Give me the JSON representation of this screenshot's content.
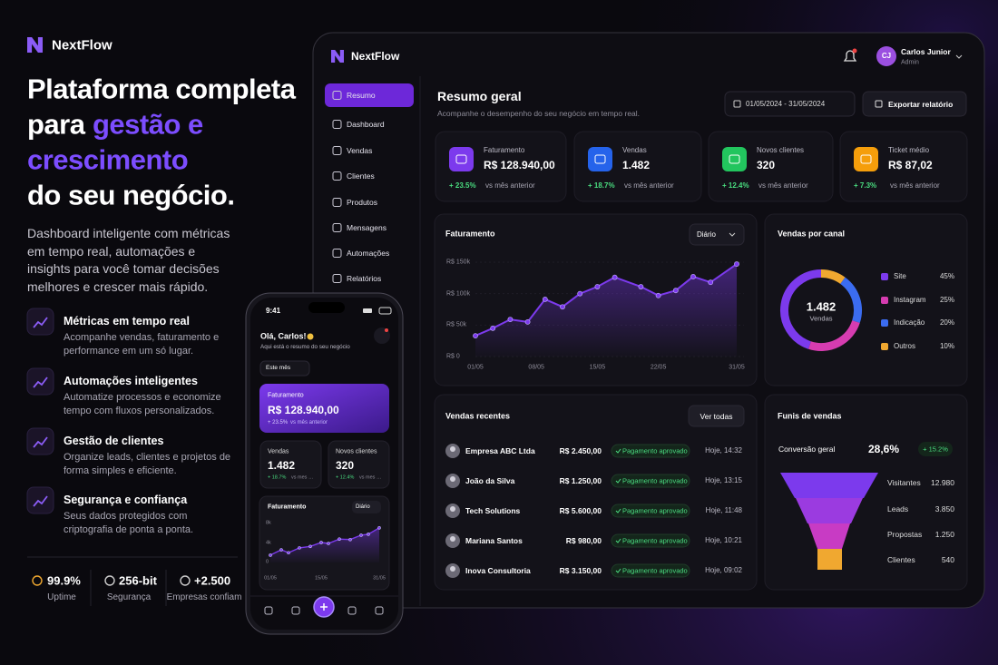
{
  "brand": "NextFlow",
  "hero": {
    "title": [
      "Plataforma completa",
      "para",
      "gestão e",
      "crescimento",
      "do seu negócio."
    ],
    "description": "Dashboard inteligente com métricas em tempo real, automações e insights para você tomar decisões melhores e crescer mais rápido.",
    "features": [
      {
        "title": "Métricas em tempo real",
        "description": "Acompanhe vendas, faturamento e performance em um só lugar."
      },
      {
        "title": "Automações inteligentes",
        "description": "Automatize processos e economize tempo com fluxos personalizados."
      },
      {
        "title": "Gestão de clientes",
        "description": "Organize leads, clientes e projetos de forma simples e eficiente."
      },
      {
        "title": "Segurança e confiança",
        "description": "Seus dados protegidos com criptografia de ponta a ponta."
      }
    ],
    "stats": [
      {
        "value": "99.9%",
        "label": "Uptime"
      },
      {
        "value": "256-bit",
        "label": "Segurança"
      },
      {
        "value": "+2.500",
        "label": "Empresas confiam"
      }
    ]
  },
  "dashboard": {
    "brand": "NextFlow",
    "user": {
      "initials": "CJ",
      "name": "Carlos Junior",
      "role": "Admin"
    },
    "nav": [
      "Resumo",
      "Dashboard",
      "Vendas",
      "Clientes",
      "Produtos",
      "Mensagens",
      "Automações",
      "Relatórios"
    ],
    "active_nav": 0,
    "title": "Resumo geral",
    "subtitle": "Acompanhe o desempenho do seu negócio em tempo real.",
    "date_range": "01/05/2024 - 31/05/2024",
    "export": "Exportar relatório",
    "kpis": [
      {
        "label": "Faturamento",
        "value": "R$ 128.940,00",
        "change": "+ 23.5%",
        "compare": "vs mês anterior",
        "color": "#7c3aed"
      },
      {
        "label": "Vendas",
        "value": "1.482",
        "change": "+ 18.7%",
        "compare": "vs mês anterior",
        "color": "#2563eb"
      },
      {
        "label": "Novos clientes",
        "value": "320",
        "change": "+ 12.4%",
        "compare": "vs mês anterior",
        "color": "#22c55e"
      },
      {
        "label": "Ticket médio",
        "value": "R$ 87,02",
        "change": "+ 7.3%",
        "compare": "vs mês anterior",
        "color": "#f59e0b"
      }
    ],
    "revenue_chart": {
      "type": "line",
      "title": "Faturamento",
      "period": "Diário",
      "color": "#7c3aed",
      "x": [
        1,
        3,
        5,
        7,
        9,
        11,
        13,
        15,
        17,
        20,
        22,
        24,
        26,
        28,
        31
      ],
      "values": [
        33000,
        45000,
        59000,
        55000,
        91000,
        79000,
        100000,
        111000,
        126000,
        111000,
        97000,
        105000,
        127000,
        118000,
        147000
      ],
      "xlim": [
        1,
        31
      ],
      "xticks": [
        {
          "value": 1,
          "label": "01/05"
        },
        {
          "value": 8,
          "label": "08/05"
        },
        {
          "value": 15,
          "label": "15/05"
        },
        {
          "value": 22,
          "label": "22/05"
        },
        {
          "value": 31,
          "label": "31/05"
        }
      ],
      "ylim": [
        0,
        150000
      ],
      "yticks": [
        {
          "value": 0,
          "label": "R$ 0"
        },
        {
          "value": 50000,
          "label": "R$ 50k"
        },
        {
          "value": 100000,
          "label": "R$ 100k"
        },
        {
          "value": 150000,
          "label": "R$ 150k"
        }
      ],
      "grid": true
    },
    "channels": {
      "type": "donut",
      "title": "Vendas por canal",
      "total": "1.482",
      "total_label": "Vendas",
      "categories": [
        "Site",
        "Instagram",
        "Indicação",
        "Outros"
      ],
      "values": [
        45,
        25,
        20,
        10
      ],
      "value_labels": [
        "45%",
        "25%",
        "20%",
        "10%"
      ],
      "colors": [
        "#7c3aed",
        "#d63cb0",
        "#3b6cf0",
        "#f0a830"
      ]
    },
    "recent_sales": {
      "title": "Vendas recentes",
      "action": "Ver todas",
      "rows": [
        {
          "name": "Empresa ABC Ltda",
          "amount": "R$ 2.450,00",
          "status": "Pagamento aprovado",
          "date": "Hoje, 14:32"
        },
        {
          "name": "João da Silva",
          "amount": "R$ 1.250,00",
          "status": "Pagamento aprovado",
          "date": "Hoje, 13:15"
        },
        {
          "name": "Tech Solutions",
          "amount": "R$ 5.600,00",
          "status": "Pagamento aprovado",
          "date": "Hoje, 11:48"
        },
        {
          "name": "Mariana Santos",
          "amount": "R$ 980,00",
          "status": "Pagamento aprovado",
          "date": "Hoje, 10:21"
        },
        {
          "name": "Inova Consultoria",
          "amount": "R$ 3.150,00",
          "status": "Pagamento aprovado",
          "date": "Hoje, 09:02"
        }
      ]
    },
    "funnel": {
      "title": "Funis de vendas",
      "conversion_label": "Conversão geral",
      "conversion": "28,6%",
      "change": "+ 15.2%",
      "stages": [
        {
          "name": "Visitantes",
          "value": "12.980"
        },
        {
          "name": "Leads",
          "value": "3.850"
        },
        {
          "name": "Propostas",
          "value": "1.250"
        },
        {
          "name": "Clientes",
          "value": "540"
        }
      ]
    }
  },
  "phone": {
    "time": "9:41",
    "greeting": "Olá, Carlos!",
    "subtitle": "Aqui está o resumo do seu negócio",
    "period": "Este mês",
    "hero_card": {
      "label": "Faturamento",
      "value": "R$ 128.940,00",
      "change": "+ 23.5%",
      "compare": "vs mês anterior"
    },
    "cards": [
      {
        "label": "Vendas",
        "value": "1.482",
        "change": "+ 18.7%",
        "compare": "vs mês anterior"
      },
      {
        "label": "Novos clientes",
        "value": "320",
        "change": "+ 12.4%",
        "compare": "vs mês anterior"
      }
    ],
    "chart": {
      "type": "line",
      "title": "Faturamento",
      "period": "Diário",
      "color": "#7c3aed",
      "x": [
        1,
        4,
        6,
        9,
        12,
        15,
        17,
        20,
        23,
        26,
        28,
        31
      ],
      "values": [
        1500,
        2600,
        2000,
        3000,
        3300,
        4100,
        3900,
        4800,
        4700,
        5600,
        5800,
        7100
      ],
      "xlim": [
        1,
        31
      ],
      "xticks": [
        {
          "value": 1,
          "label": "01/05"
        },
        {
          "value": 15,
          "label": "15/05"
        },
        {
          "value": 31,
          "label": "31/05"
        }
      ],
      "ylim": [
        0,
        8000
      ],
      "yticks": [
        {
          "value": 0,
          "label": "0"
        },
        {
          "value": 4000,
          "label": "4k"
        },
        {
          "value": 8000,
          "label": "8k"
        }
      ],
      "grid": false
    }
  }
}
